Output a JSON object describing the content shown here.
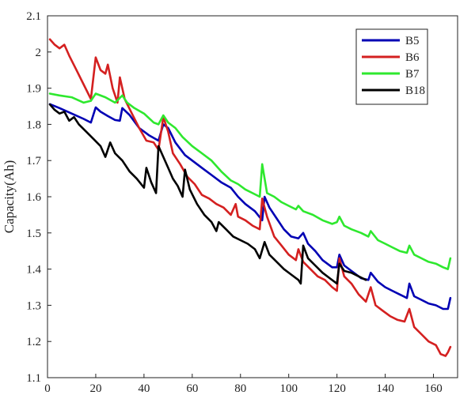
{
  "chart_data": {
    "type": "line",
    "title": "",
    "xlabel": "",
    "ylabel": "Capacity(Ah)",
    "xlim": [
      0,
      170
    ],
    "ylim": [
      1.1,
      2.1
    ],
    "xticks": [
      0,
      20,
      40,
      60,
      80,
      100,
      120,
      140,
      160
    ],
    "yticks": [
      1.1,
      1.2,
      1.3,
      1.4,
      1.5,
      1.6,
      1.7,
      1.8,
      1.9,
      2,
      2.1
    ],
    "xtick_labels": [
      "0",
      "20",
      "40",
      "60",
      "80",
      "100",
      "120",
      "140",
      "160"
    ],
    "ytick_labels": [
      "1.1",
      "1.2",
      "1.3",
      "1.4",
      "1.5",
      "1.6",
      "1.7",
      "1.8",
      "1.9",
      "2",
      "2.1"
    ],
    "grid": false,
    "legend_position": "top-right",
    "series": [
      {
        "name": "B5",
        "color": "#0000b4",
        "points": [
          [
            1,
            1.856
          ],
          [
            5,
            1.845
          ],
          [
            10,
            1.83
          ],
          [
            15,
            1.815
          ],
          [
            18,
            1.805
          ],
          [
            20,
            1.847
          ],
          [
            22,
            1.835
          ],
          [
            25,
            1.823
          ],
          [
            28,
            1.812
          ],
          [
            30,
            1.81
          ],
          [
            31,
            1.845
          ],
          [
            34,
            1.826
          ],
          [
            38,
            1.79
          ],
          [
            42,
            1.77
          ],
          [
            46,
            1.755
          ],
          [
            48,
            1.8
          ],
          [
            50,
            1.79
          ],
          [
            53,
            1.75
          ],
          [
            57,
            1.715
          ],
          [
            60,
            1.7
          ],
          [
            64,
            1.68
          ],
          [
            68,
            1.66
          ],
          [
            72,
            1.64
          ],
          [
            76,
            1.625
          ],
          [
            79,
            1.6
          ],
          [
            82,
            1.58
          ],
          [
            86,
            1.56
          ],
          [
            89,
            1.535
          ],
          [
            90,
            1.6
          ],
          [
            92,
            1.57
          ],
          [
            95,
            1.54
          ],
          [
            98,
            1.51
          ],
          [
            101,
            1.49
          ],
          [
            104,
            1.485
          ],
          [
            106,
            1.5
          ],
          [
            108,
            1.47
          ],
          [
            111,
            1.45
          ],
          [
            114,
            1.425
          ],
          [
            118,
            1.405
          ],
          [
            120,
            1.405
          ],
          [
            121,
            1.44
          ],
          [
            123,
            1.41
          ],
          [
            126,
            1.395
          ],
          [
            130,
            1.375
          ],
          [
            133,
            1.37
          ],
          [
            134,
            1.39
          ],
          [
            137,
            1.365
          ],
          [
            140,
            1.35
          ],
          [
            143,
            1.34
          ],
          [
            146,
            1.33
          ],
          [
            149,
            1.32
          ],
          [
            150,
            1.36
          ],
          [
            152,
            1.325
          ],
          [
            155,
            1.315
          ],
          [
            158,
            1.305
          ],
          [
            161,
            1.3
          ],
          [
            164,
            1.29
          ],
          [
            166,
            1.29
          ],
          [
            167,
            1.32
          ]
        ]
      },
      {
        "name": "B6",
        "color": "#d42020",
        "points": [
          [
            1,
            2.035
          ],
          [
            3,
            2.02
          ],
          [
            5,
            2.01
          ],
          [
            7,
            2.02
          ],
          [
            9,
            1.99
          ],
          [
            12,
            1.95
          ],
          [
            15,
            1.91
          ],
          [
            18,
            1.87
          ],
          [
            20,
            1.985
          ],
          [
            22,
            1.95
          ],
          [
            24,
            1.94
          ],
          [
            25,
            1.965
          ],
          [
            27,
            1.9
          ],
          [
            29,
            1.86
          ],
          [
            30,
            1.93
          ],
          [
            32,
            1.87
          ],
          [
            35,
            1.83
          ],
          [
            38,
            1.79
          ],
          [
            41,
            1.755
          ],
          [
            44,
            1.75
          ],
          [
            46,
            1.73
          ],
          [
            48,
            1.82
          ],
          [
            50,
            1.78
          ],
          [
            52,
            1.72
          ],
          [
            55,
            1.69
          ],
          [
            58,
            1.655
          ],
          [
            61,
            1.635
          ],
          [
            64,
            1.605
          ],
          [
            67,
            1.595
          ],
          [
            70,
            1.58
          ],
          [
            73,
            1.57
          ],
          [
            76,
            1.55
          ],
          [
            78,
            1.58
          ],
          [
            79,
            1.545
          ],
          [
            82,
            1.535
          ],
          [
            85,
            1.52
          ],
          [
            88,
            1.51
          ],
          [
            89,
            1.595
          ],
          [
            91,
            1.545
          ],
          [
            94,
            1.49
          ],
          [
            97,
            1.465
          ],
          [
            100,
            1.44
          ],
          [
            103,
            1.425
          ],
          [
            104,
            1.455
          ],
          [
            106,
            1.42
          ],
          [
            109,
            1.4
          ],
          [
            112,
            1.38
          ],
          [
            115,
            1.37
          ],
          [
            118,
            1.35
          ],
          [
            120,
            1.34
          ],
          [
            121,
            1.43
          ],
          [
            123,
            1.38
          ],
          [
            126,
            1.36
          ],
          [
            129,
            1.33
          ],
          [
            132,
            1.31
          ],
          [
            134,
            1.35
          ],
          [
            136,
            1.3
          ],
          [
            139,
            1.285
          ],
          [
            142,
            1.27
          ],
          [
            145,
            1.26
          ],
          [
            148,
            1.255
          ],
          [
            150,
            1.29
          ],
          [
            152,
            1.24
          ],
          [
            155,
            1.22
          ],
          [
            158,
            1.2
          ],
          [
            161,
            1.19
          ],
          [
            163,
            1.165
          ],
          [
            165,
            1.16
          ],
          [
            166,
            1.17
          ],
          [
            167,
            1.185
          ]
        ]
      },
      {
        "name": "B7",
        "color": "#2ee82e",
        "points": [
          [
            1,
            1.885
          ],
          [
            5,
            1.88
          ],
          [
            10,
            1.875
          ],
          [
            15,
            1.86
          ],
          [
            18,
            1.865
          ],
          [
            20,
            1.885
          ],
          [
            24,
            1.875
          ],
          [
            28,
            1.86
          ],
          [
            31,
            1.88
          ],
          [
            33,
            1.86
          ],
          [
            36,
            1.845
          ],
          [
            40,
            1.83
          ],
          [
            44,
            1.805
          ],
          [
            46,
            1.8
          ],
          [
            48,
            1.825
          ],
          [
            50,
            1.805
          ],
          [
            53,
            1.79
          ],
          [
            56,
            1.765
          ],
          [
            60,
            1.74
          ],
          [
            64,
            1.72
          ],
          [
            68,
            1.7
          ],
          [
            72,
            1.67
          ],
          [
            76,
            1.645
          ],
          [
            79,
            1.635
          ],
          [
            82,
            1.62
          ],
          [
            85,
            1.61
          ],
          [
            88,
            1.6
          ],
          [
            89,
            1.69
          ],
          [
            91,
            1.61
          ],
          [
            94,
            1.6
          ],
          [
            97,
            1.585
          ],
          [
            100,
            1.575
          ],
          [
            103,
            1.565
          ],
          [
            104,
            1.575
          ],
          [
            106,
            1.56
          ],
          [
            110,
            1.55
          ],
          [
            114,
            1.535
          ],
          [
            118,
            1.525
          ],
          [
            120,
            1.53
          ],
          [
            121,
            1.545
          ],
          [
            123,
            1.52
          ],
          [
            126,
            1.51
          ],
          [
            130,
            1.5
          ],
          [
            133,
            1.49
          ],
          [
            134,
            1.505
          ],
          [
            137,
            1.48
          ],
          [
            140,
            1.47
          ],
          [
            143,
            1.46
          ],
          [
            146,
            1.45
          ],
          [
            149,
            1.445
          ],
          [
            150,
            1.465
          ],
          [
            152,
            1.44
          ],
          [
            155,
            1.43
          ],
          [
            158,
            1.42
          ],
          [
            161,
            1.415
          ],
          [
            164,
            1.405
          ],
          [
            166,
            1.4
          ],
          [
            167,
            1.43
          ]
        ]
      },
      {
        "name": "B18",
        "color": "#000000",
        "points": [
          [
            1,
            1.855
          ],
          [
            3,
            1.84
          ],
          [
            5,
            1.83
          ],
          [
            7,
            1.835
          ],
          [
            9,
            1.81
          ],
          [
            11,
            1.82
          ],
          [
            13,
            1.8
          ],
          [
            16,
            1.78
          ],
          [
            19,
            1.76
          ],
          [
            22,
            1.74
          ],
          [
            24,
            1.71
          ],
          [
            26,
            1.75
          ],
          [
            28,
            1.72
          ],
          [
            31,
            1.7
          ],
          [
            34,
            1.67
          ],
          [
            37,
            1.65
          ],
          [
            40,
            1.625
          ],
          [
            41,
            1.68
          ],
          [
            43,
            1.64
          ],
          [
            45,
            1.61
          ],
          [
            46,
            1.74
          ],
          [
            48,
            1.71
          ],
          [
            50,
            1.68
          ],
          [
            52,
            1.65
          ],
          [
            54,
            1.63
          ],
          [
            56,
            1.6
          ],
          [
            57,
            1.675
          ],
          [
            59,
            1.62
          ],
          [
            62,
            1.58
          ],
          [
            65,
            1.55
          ],
          [
            68,
            1.53
          ],
          [
            70,
            1.505
          ],
          [
            71,
            1.53
          ],
          [
            74,
            1.51
          ],
          [
            77,
            1.49
          ],
          [
            80,
            1.48
          ],
          [
            83,
            1.47
          ],
          [
            86,
            1.455
          ],
          [
            88,
            1.43
          ],
          [
            90,
            1.475
          ],
          [
            92,
            1.44
          ],
          [
            95,
            1.42
          ],
          [
            98,
            1.4
          ],
          [
            101,
            1.385
          ],
          [
            104,
            1.37
          ],
          [
            105,
            1.36
          ],
          [
            106,
            1.465
          ],
          [
            108,
            1.43
          ],
          [
            111,
            1.41
          ],
          [
            114,
            1.39
          ],
          [
            117,
            1.375
          ],
          [
            120,
            1.36
          ],
          [
            121,
            1.415
          ],
          [
            123,
            1.395
          ],
          [
            126,
            1.39
          ],
          [
            129,
            1.38
          ],
          [
            132,
            1.37
          ]
        ]
      }
    ]
  }
}
